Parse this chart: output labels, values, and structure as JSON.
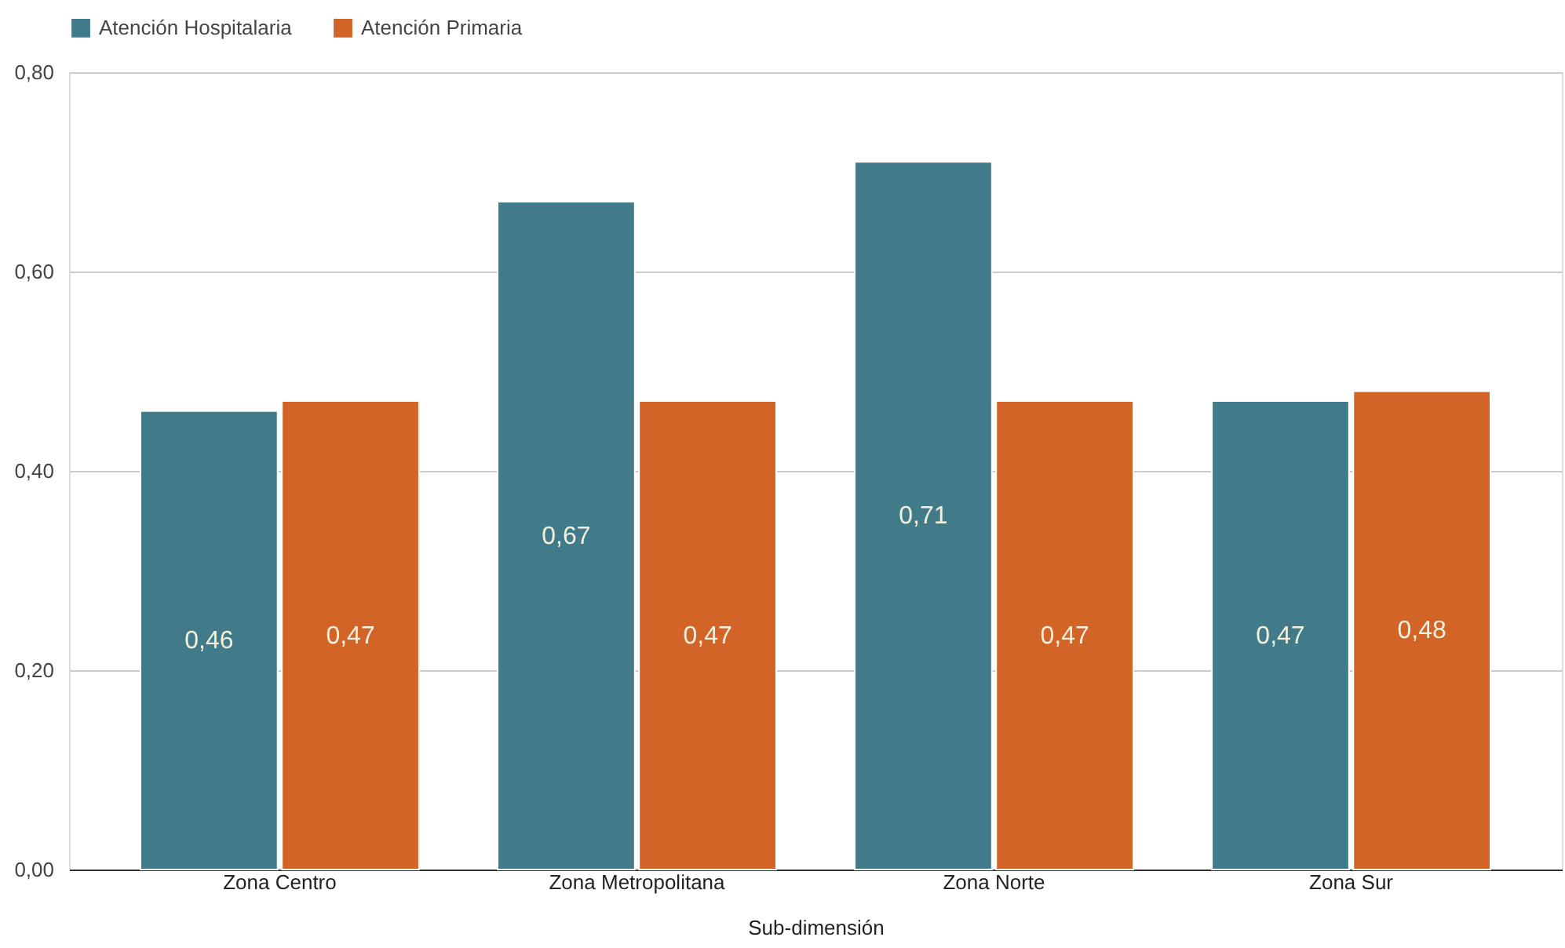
{
  "chart_data": {
    "type": "bar",
    "categories": [
      "Zona Centro",
      "Zona Metropolitana",
      "Zona Norte",
      "Zona Sur"
    ],
    "series": [
      {
        "name": "Atención Hospitalaria",
        "color": "#417b8a",
        "values": [
          0.46,
          0.67,
          0.71,
          0.47
        ],
        "value_labels": [
          "0,46",
          "0,67",
          "0,71",
          "0,47"
        ]
      },
      {
        "name": "Atención Primaria",
        "color": "#d26428",
        "values": [
          0.47,
          0.47,
          0.47,
          0.48
        ],
        "value_labels": [
          "0,47",
          "0,47",
          "0,47",
          "0,48"
        ]
      }
    ],
    "xlabel": "Sub-dimensión",
    "ylim": [
      0,
      0.8
    ],
    "yticks": [
      {
        "value": 0,
        "label": "0,00"
      },
      {
        "value": 0.2,
        "label": "0,20"
      },
      {
        "value": 0.4,
        "label": "0,40"
      },
      {
        "value": 0.6,
        "label": "0,60"
      },
      {
        "value": 0.8,
        "label": "0,80"
      }
    ],
    "grid": "y",
    "legend": "top"
  }
}
